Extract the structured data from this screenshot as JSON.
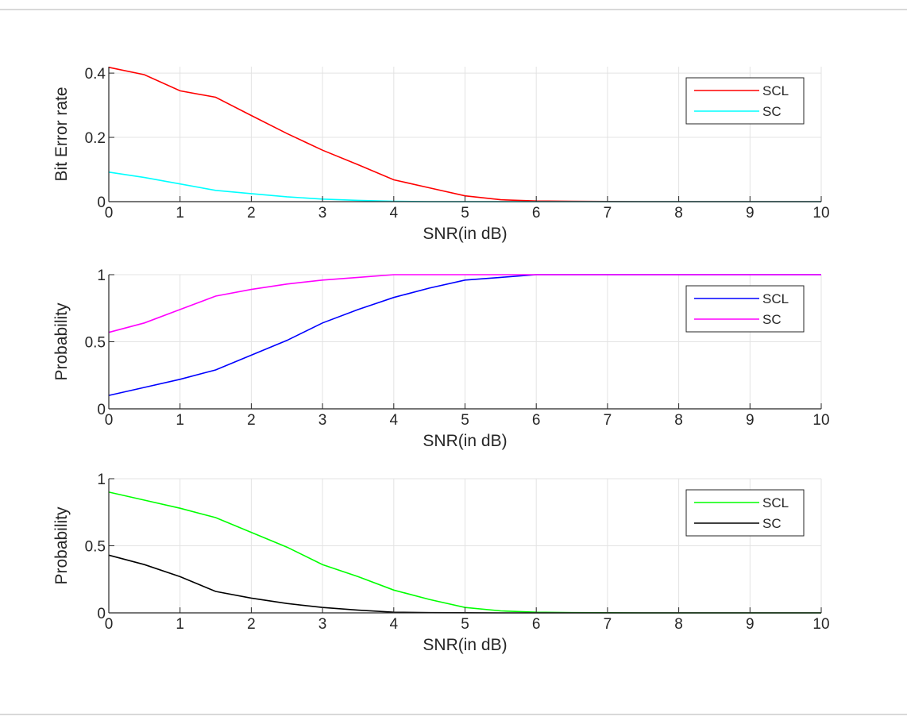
{
  "chart_data": [
    {
      "type": "line",
      "xlabel": "SNR(in dB)",
      "ylabel": "Bit Error rate",
      "xlim": [
        0,
        10
      ],
      "ylim": [
        0,
        0.42
      ],
      "xticks": [
        0,
        1,
        2,
        3,
        4,
        5,
        6,
        7,
        8,
        9,
        10
      ],
      "yticks": [
        0,
        0.2,
        0.4
      ],
      "ytick_labels": [
        "0",
        "0.2",
        "0.4"
      ],
      "grid": true,
      "legend_position": "top-right",
      "x": [
        0,
        0.5,
        1,
        1.5,
        2,
        2.5,
        3,
        3.5,
        4,
        4.5,
        5,
        5.5,
        6,
        6.5,
        7,
        7.5,
        8,
        8.5,
        9,
        9.5,
        10
      ],
      "series": [
        {
          "name": "SCL",
          "color": "#ff0000",
          "values": [
            0.418,
            0.395,
            0.345,
            0.325,
            0.268,
            0.212,
            0.16,
            0.115,
            0.068,
            0.043,
            0.018,
            0.006,
            0.002,
            0.001,
            0.0005,
            0,
            0,
            0,
            0,
            0,
            0
          ]
        },
        {
          "name": "SC",
          "color": "#00ffff",
          "values": [
            0.092,
            0.075,
            0.055,
            0.035,
            0.025,
            0.015,
            0.008,
            0.004,
            0.001,
            0,
            0,
            0,
            0,
            0,
            0,
            0,
            0,
            0,
            0,
            0,
            0
          ]
        }
      ]
    },
    {
      "type": "line",
      "xlabel": "SNR(in dB)",
      "ylabel": "Probability",
      "xlim": [
        0,
        10
      ],
      "ylim": [
        0,
        1
      ],
      "xticks": [
        0,
        1,
        2,
        3,
        4,
        5,
        6,
        7,
        8,
        9,
        10
      ],
      "yticks": [
        0,
        0.5,
        1
      ],
      "ytick_labels": [
        "0",
        "0.5",
        "1"
      ],
      "grid": true,
      "legend_position": "top-right",
      "x": [
        0,
        0.5,
        1,
        1.5,
        2,
        2.5,
        3,
        3.5,
        4,
        4.5,
        5,
        5.5,
        6,
        6.5,
        7,
        7.5,
        8,
        8.5,
        9,
        9.5,
        10
      ],
      "series": [
        {
          "name": "SCL",
          "color": "#0000ff",
          "values": [
            0.1,
            0.16,
            0.22,
            0.29,
            0.4,
            0.51,
            0.64,
            0.74,
            0.83,
            0.9,
            0.96,
            0.98,
            1,
            1,
            1,
            1,
            1,
            1,
            1,
            1,
            1
          ]
        },
        {
          "name": "SC",
          "color": "#ff00ff",
          "values": [
            0.57,
            0.64,
            0.74,
            0.84,
            0.89,
            0.93,
            0.96,
            0.98,
            1,
            1,
            1,
            1,
            1,
            1,
            1,
            1,
            1,
            1,
            1,
            1,
            1
          ]
        }
      ]
    },
    {
      "type": "line",
      "xlabel": "SNR(in dB)",
      "ylabel": "Probability",
      "xlim": [
        0,
        10
      ],
      "ylim": [
        0,
        1
      ],
      "xticks": [
        0,
        1,
        2,
        3,
        4,
        5,
        6,
        7,
        8,
        9,
        10
      ],
      "yticks": [
        0,
        0.5,
        1
      ],
      "ytick_labels": [
        "0",
        "0.5",
        "1"
      ],
      "grid": true,
      "legend_position": "top-right",
      "x": [
        0,
        0.5,
        1,
        1.5,
        2,
        2.5,
        3,
        3.5,
        4,
        4.5,
        5,
        5.5,
        6,
        6.5,
        7,
        7.5,
        8,
        8.5,
        9,
        9.5,
        10
      ],
      "series": [
        {
          "name": "SCL",
          "color": "#00ff00",
          "values": [
            0.9,
            0.84,
            0.78,
            0.71,
            0.6,
            0.49,
            0.36,
            0.27,
            0.17,
            0.1,
            0.04,
            0.015,
            0.005,
            0.002,
            0.001,
            0,
            0,
            0,
            0,
            0,
            0
          ]
        },
        {
          "name": "SC",
          "color": "#000000",
          "values": [
            0.43,
            0.36,
            0.27,
            0.16,
            0.11,
            0.07,
            0.04,
            0.02,
            0.005,
            0.002,
            0.001,
            0,
            0,
            0,
            0,
            0,
            0,
            0,
            0,
            0,
            0
          ]
        }
      ]
    }
  ]
}
